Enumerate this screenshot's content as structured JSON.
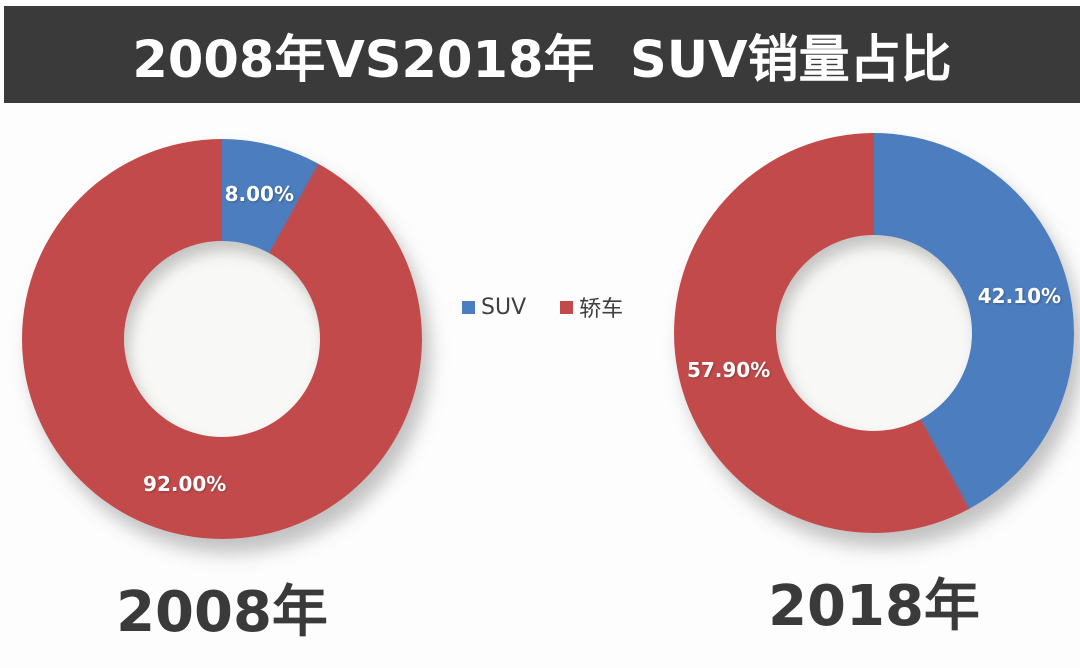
{
  "title": "2008年VS2018年  SUV销量占比",
  "colors": {
    "suv_blue": "#4c7dbf",
    "sedan_red": "#c24a4b",
    "banner_bg": "#3a3a3a",
    "label_text": "#ffffff",
    "caption_text": "#3a3a3a"
  },
  "legend": {
    "items": [
      {
        "label": "SUV",
        "color": "#4c7dbf"
      },
      {
        "label": "轿车",
        "color": "#c24a4b"
      }
    ]
  },
  "chart_data": [
    {
      "type": "pie",
      "subtype": "donut",
      "title": "2008年",
      "hole_ratio": 0.49,
      "start_angle_deg": 0,
      "direction": "clockwise",
      "slices": [
        {
          "name": "SUV",
          "value": 8.0,
          "label": "8.00%",
          "color": "#4c7dbf"
        },
        {
          "name": "轿车",
          "value": 92.0,
          "label": "92.00%",
          "color": "#c24a4b"
        }
      ]
    },
    {
      "type": "pie",
      "subtype": "donut",
      "title": "2018年",
      "hole_ratio": 0.49,
      "start_angle_deg": 0,
      "direction": "clockwise",
      "slices": [
        {
          "name": "SUV",
          "value": 42.1,
          "label": "42.10%",
          "color": "#4c7dbf"
        },
        {
          "name": "轿车",
          "value": 57.9,
          "label": "57.90%",
          "color": "#c24a4b"
        }
      ]
    }
  ]
}
